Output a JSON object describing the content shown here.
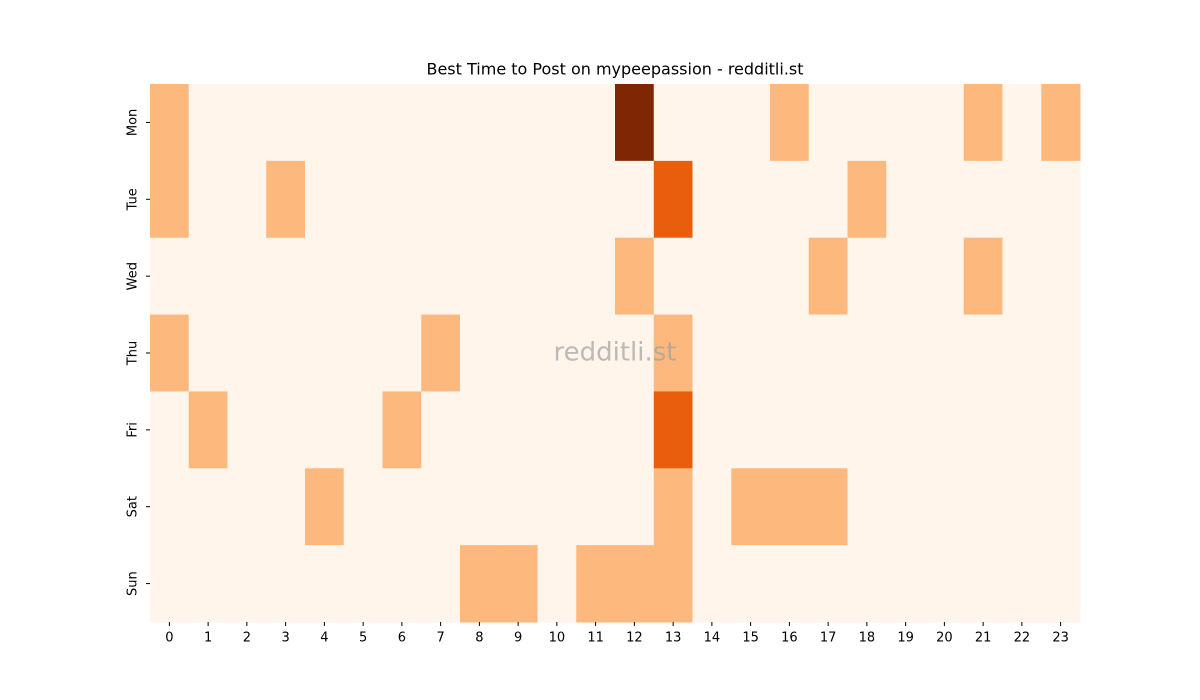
{
  "chart_data": {
    "type": "heatmap",
    "title": "Best Time to Post on mypeepassion - redditli.st",
    "watermark": "redditli.st",
    "x": [
      0,
      1,
      2,
      3,
      4,
      5,
      6,
      7,
      8,
      9,
      10,
      11,
      12,
      13,
      14,
      15,
      16,
      17,
      18,
      19,
      20,
      21,
      22,
      23
    ],
    "y": [
      "Mon",
      "Tue",
      "Wed",
      "Thu",
      "Fri",
      "Sat",
      "Sun"
    ],
    "values": [
      [
        1,
        0,
        0,
        0,
        0,
        0,
        0,
        0,
        0,
        0,
        0,
        0,
        3,
        0,
        0,
        0,
        1,
        0,
        0,
        0,
        0,
        1,
        0,
        1
      ],
      [
        1,
        0,
        0,
        1,
        0,
        0,
        0,
        0,
        0,
        0,
        0,
        0,
        0,
        2,
        0,
        0,
        0,
        0,
        1,
        0,
        0,
        0,
        0,
        0
      ],
      [
        0,
        0,
        0,
        0,
        0,
        0,
        0,
        0,
        0,
        0,
        0,
        0,
        1,
        0,
        0,
        0,
        0,
        1,
        0,
        0,
        0,
        1,
        0,
        0
      ],
      [
        1,
        0,
        0,
        0,
        0,
        0,
        0,
        1,
        0,
        0,
        0,
        0,
        0,
        1,
        0,
        0,
        0,
        0,
        0,
        0,
        0,
        0,
        0,
        0
      ],
      [
        0,
        1,
        0,
        0,
        0,
        0,
        1,
        0,
        0,
        0,
        0,
        0,
        0,
        2,
        0,
        0,
        0,
        0,
        0,
        0,
        0,
        0,
        0,
        0
      ],
      [
        0,
        0,
        0,
        0,
        1,
        0,
        0,
        0,
        0,
        0,
        0,
        0,
        0,
        1,
        0,
        1,
        1,
        1,
        0,
        0,
        0,
        0,
        0,
        0
      ],
      [
        0,
        0,
        0,
        0,
        0,
        0,
        0,
        0,
        1,
        1,
        0,
        1,
        1,
        1,
        0,
        0,
        0,
        0,
        0,
        0,
        0,
        0,
        0,
        0
      ]
    ],
    "zlim": [
      0,
      3
    ],
    "colorscale": [
      "#fff5eb",
      "#fdb97d",
      "#e95e0d",
      "#7f2704"
    ]
  }
}
